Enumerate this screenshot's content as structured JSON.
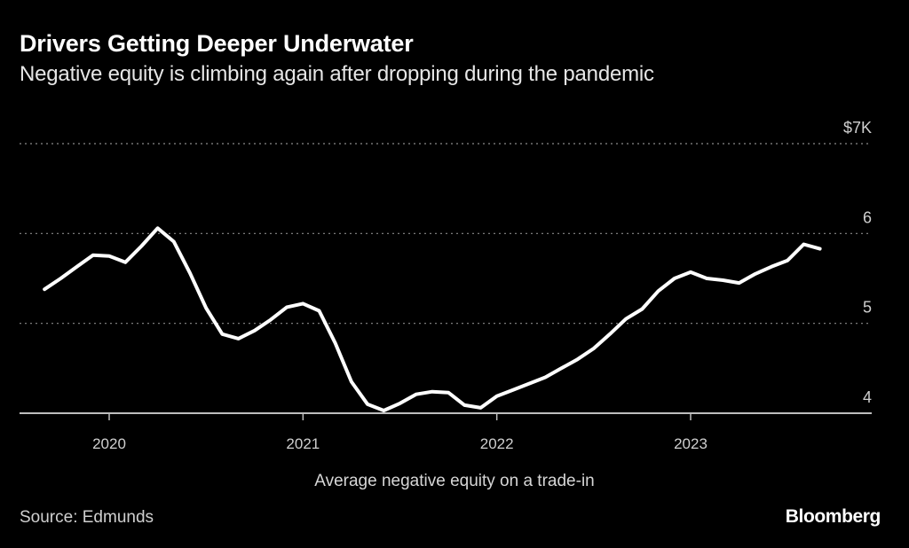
{
  "title": "Drivers Getting Deeper Underwater",
  "subtitle": "Negative equity is climbing again after dropping during the pandemic",
  "caption": "Average negative equity on a trade-in",
  "source": "Source: Edmunds",
  "brand": "Bloomberg",
  "chart_data": {
    "type": "line",
    "title": "Drivers Getting Deeper Underwater",
    "subtitle": "Negative equity is climbing again after dropping during the pandemic",
    "xlabel": "Average negative equity on a trade-in",
    "ylabel": "",
    "y_unit": "$K",
    "ylim": [
      4,
      7
    ],
    "yticks": [
      4,
      5,
      6,
      7
    ],
    "ytick_labels": [
      "4",
      "5",
      "6",
      "$7K"
    ],
    "xticks": [
      "2020",
      "2021",
      "2022",
      "2023"
    ],
    "x_range": [
      "2019-09",
      "2023-11"
    ],
    "grid": "horizontal-dotted",
    "legend": "none",
    "color": "#ffffff",
    "series": [
      {
        "name": "Average negative equity",
        "x": [
          "2019-09",
          "2019-10",
          "2019-11",
          "2019-12",
          "2020-01",
          "2020-02",
          "2020-03",
          "2020-04",
          "2020-05",
          "2020-06",
          "2020-07",
          "2020-08",
          "2020-09",
          "2020-10",
          "2020-11",
          "2020-12",
          "2021-01",
          "2021-02",
          "2021-03",
          "2021-04",
          "2021-05",
          "2021-06",
          "2021-07",
          "2021-08",
          "2021-09",
          "2021-10",
          "2021-11",
          "2021-12",
          "2022-01",
          "2022-02",
          "2022-03",
          "2022-04",
          "2022-05",
          "2022-06",
          "2022-07",
          "2022-08",
          "2022-09",
          "2022-10",
          "2022-11",
          "2022-12",
          "2023-01",
          "2023-02",
          "2023-03",
          "2023-04",
          "2023-05",
          "2023-06",
          "2023-07",
          "2023-08",
          "2023-09"
        ],
        "values": [
          5.38,
          5.5,
          5.63,
          5.76,
          5.75,
          5.68,
          5.86,
          6.06,
          5.91,
          5.56,
          5.17,
          4.88,
          4.83,
          4.92,
          5.04,
          5.18,
          5.22,
          5.14,
          4.78,
          4.35,
          4.1,
          4.03,
          4.11,
          4.21,
          4.24,
          4.23,
          4.09,
          4.06,
          4.19,
          4.26,
          4.33,
          4.4,
          4.5,
          4.6,
          4.72,
          4.88,
          5.05,
          5.16,
          5.36,
          5.5,
          5.57,
          5.5,
          5.48,
          5.45,
          5.55,
          5.63,
          5.7,
          5.88,
          5.83
        ]
      }
    ]
  }
}
